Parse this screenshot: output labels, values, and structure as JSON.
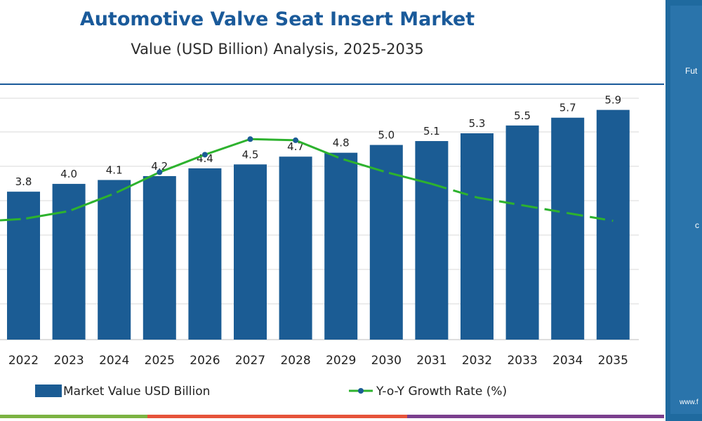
{
  "title": "Automotive Valve Seat Insert Market",
  "subtitle": "Value (USD Billion) Analysis, 2025-2035",
  "colors": {
    "title": "#1a5a9a",
    "bar": "#1b5c94",
    "line": "#2db22e",
    "sidebar": "#1f6a9f",
    "footer_segments": [
      "#7cb342",
      "#e6533a",
      "#7b3f8e"
    ]
  },
  "sidebar": {
    "logo_text": "Fut",
    "url_text": "www.f",
    "side_text": "c"
  },
  "chart_data": {
    "type": "bar",
    "categories": [
      "2022",
      "2023",
      "2024",
      "2025",
      "2026",
      "2027",
      "2028",
      "2029",
      "2030",
      "2031",
      "2032",
      "2033",
      "2034",
      "2035"
    ],
    "series": [
      {
        "name": "Market Value USD Billion",
        "type": "bar",
        "values": [
          3.8,
          4.0,
          4.1,
          4.2,
          4.4,
          4.5,
          4.7,
          4.8,
          5.0,
          5.1,
          5.3,
          5.5,
          5.7,
          5.9
        ],
        "labels": [
          "3.8",
          "4.0",
          "4.1",
          "4.2",
          "4.4",
          "4.5",
          "4.7",
          "4.8",
          "5.0",
          "5.1",
          "5.3",
          "5.5",
          "5.7",
          "5.9"
        ]
      },
      {
        "name": "Y-o-Y Growth Rate (%)",
        "type": "line",
        "values": [
          3.1,
          3.3,
          3.75,
          4.3,
          4.75,
          5.15,
          5.12,
          4.65,
          4.3,
          4.0,
          3.65,
          3.45,
          3.25,
          3.05
        ],
        "dashed_from_index": 9
      }
    ],
    "ylim": [
      0,
      6.2
    ],
    "y2lim": [
      0,
      6.2
    ],
    "grid": true,
    "legend": "bottom"
  }
}
